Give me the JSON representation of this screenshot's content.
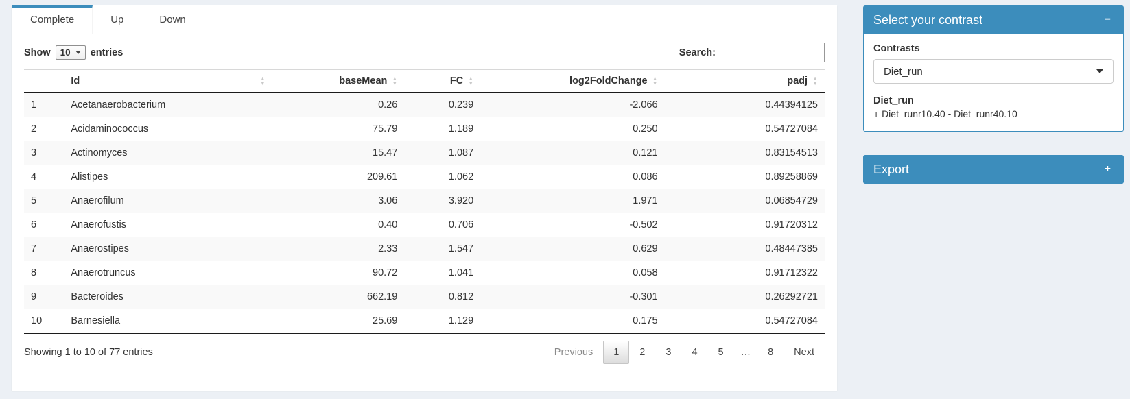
{
  "colors": {
    "primary": "#3c8dbc",
    "page_bg": "#ecf0f5",
    "stripe": "#f9f9f9"
  },
  "icons": {
    "sort_up": "▲",
    "sort_down": "▼"
  },
  "tabs": {
    "complete": "Complete",
    "up": "Up",
    "down": "Down",
    "active": "Complete"
  },
  "controls": {
    "show_label": "Show",
    "length_value": "10",
    "entries_label": "entries",
    "search_label": "Search:",
    "search_value": ""
  },
  "table": {
    "columns": {
      "id": "Id",
      "baseMean": "baseMean",
      "fc": "FC",
      "log2fc": "log2FoldChange",
      "padj": "padj"
    },
    "rows": [
      {
        "n": "1",
        "id": "Acetanaerobacterium",
        "baseMean": "0.26",
        "fc": "0.239",
        "log2fc": "-2.066",
        "padj": "0.44394125"
      },
      {
        "n": "2",
        "id": "Acidaminococcus",
        "baseMean": "75.79",
        "fc": "1.189",
        "log2fc": "0.250",
        "padj": "0.54727084"
      },
      {
        "n": "3",
        "id": "Actinomyces",
        "baseMean": "15.47",
        "fc": "1.087",
        "log2fc": "0.121",
        "padj": "0.83154513"
      },
      {
        "n": "4",
        "id": "Alistipes",
        "baseMean": "209.61",
        "fc": "1.062",
        "log2fc": "0.086",
        "padj": "0.89258869"
      },
      {
        "n": "5",
        "id": "Anaerofilum",
        "baseMean": "3.06",
        "fc": "3.920",
        "log2fc": "1.971",
        "padj": "0.06854729"
      },
      {
        "n": "6",
        "id": "Anaerofustis",
        "baseMean": "0.40",
        "fc": "0.706",
        "log2fc": "-0.502",
        "padj": "0.91720312"
      },
      {
        "n": "7",
        "id": "Anaerostipes",
        "baseMean": "2.33",
        "fc": "1.547",
        "log2fc": "0.629",
        "padj": "0.48447385"
      },
      {
        "n": "8",
        "id": "Anaerotruncus",
        "baseMean": "90.72",
        "fc": "1.041",
        "log2fc": "0.058",
        "padj": "0.91712322"
      },
      {
        "n": "9",
        "id": "Bacteroides",
        "baseMean": "662.19",
        "fc": "0.812",
        "log2fc": "-0.301",
        "padj": "0.26292721"
      },
      {
        "n": "10",
        "id": "Barnesiella",
        "baseMean": "25.69",
        "fc": "1.129",
        "log2fc": "0.175",
        "padj": "0.54727084"
      }
    ],
    "info": "Showing 1 to 10 of 77 entries",
    "pagination": {
      "previous": "Previous",
      "pages": [
        "1",
        "2",
        "3",
        "4",
        "5"
      ],
      "ellipsis": "…",
      "last_page": "8",
      "next": "Next",
      "active": "1"
    }
  },
  "contrast_box": {
    "title": "Select your contrast",
    "collapse_icon": "−",
    "contrasts_label": "Contrasts",
    "selected_contrast": "Diet_run",
    "contrast_name": "Diet_run",
    "contrast_formula": "+ Diet_runr10.40 - Diet_runr40.10"
  },
  "export_box": {
    "title": "Export",
    "expand_icon": "+"
  }
}
